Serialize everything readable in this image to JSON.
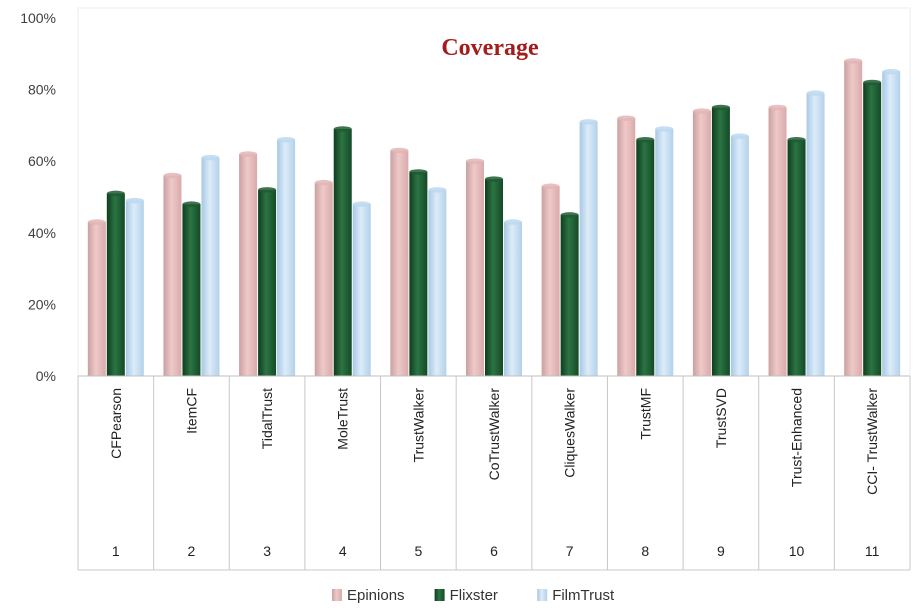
{
  "chart_data": {
    "type": "bar",
    "title": "Coverage",
    "xlabel": "",
    "ylabel": "",
    "ylim": [
      0,
      100
    ],
    "yticks": [
      "0%",
      "20%",
      "40%",
      "60%",
      "80%",
      "100%"
    ],
    "numbers": [
      "1",
      "2",
      "3",
      "4",
      "5",
      "6",
      "7",
      "8",
      "9",
      "10",
      "11"
    ],
    "categories": [
      "CFPearson",
      "ItemCF",
      "TidalTrust",
      "MoleTrust",
      "TrustWalker",
      "CoTrustWalker",
      "CliquesWalker",
      "TrustMF",
      "TrustSVD",
      "Trust-Enhanced",
      "CCI- TrustWalker"
    ],
    "series": [
      {
        "name": "Epinions",
        "color": "#e3b5b5",
        "values": [
          43,
          56,
          62,
          54,
          63,
          60,
          53,
          72,
          74,
          75,
          88
        ]
      },
      {
        "name": "Flixster",
        "color": "#1f5a32",
        "values": [
          51,
          48,
          52,
          69,
          57,
          55,
          45,
          66,
          75,
          66,
          82
        ]
      },
      {
        "name": "FilmTrust",
        "color": "#bcd8ef",
        "values": [
          49,
          61,
          66,
          48,
          52,
          43,
          71,
          69,
          67,
          79,
          85
        ]
      }
    ],
    "legend_position": "bottom",
    "grid": false
  }
}
